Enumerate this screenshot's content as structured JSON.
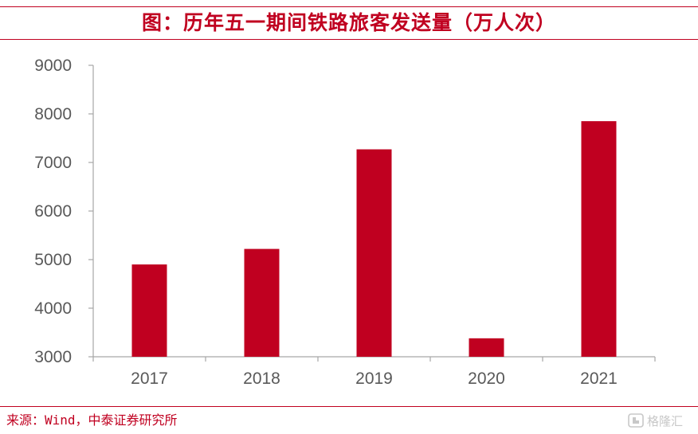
{
  "title": "图：历年五一期间铁路旅客发送量（万人次）",
  "source": "来源：Wind，中泰证券研究所",
  "watermark": "格隆汇",
  "colors": {
    "accent": "#c00020",
    "bar": "#c00020",
    "axis": "#a6a6a6",
    "tick_text": "#595959"
  },
  "chart_data": {
    "type": "bar",
    "categories": [
      "2017",
      "2018",
      "2019",
      "2020",
      "2021"
    ],
    "values": [
      4900,
      5220,
      7270,
      3380,
      7850
    ],
    "ylim": [
      3000,
      9000
    ],
    "yticks": [
      3000,
      4000,
      5000,
      6000,
      7000,
      8000,
      9000
    ],
    "grid": false,
    "legend": "none"
  }
}
